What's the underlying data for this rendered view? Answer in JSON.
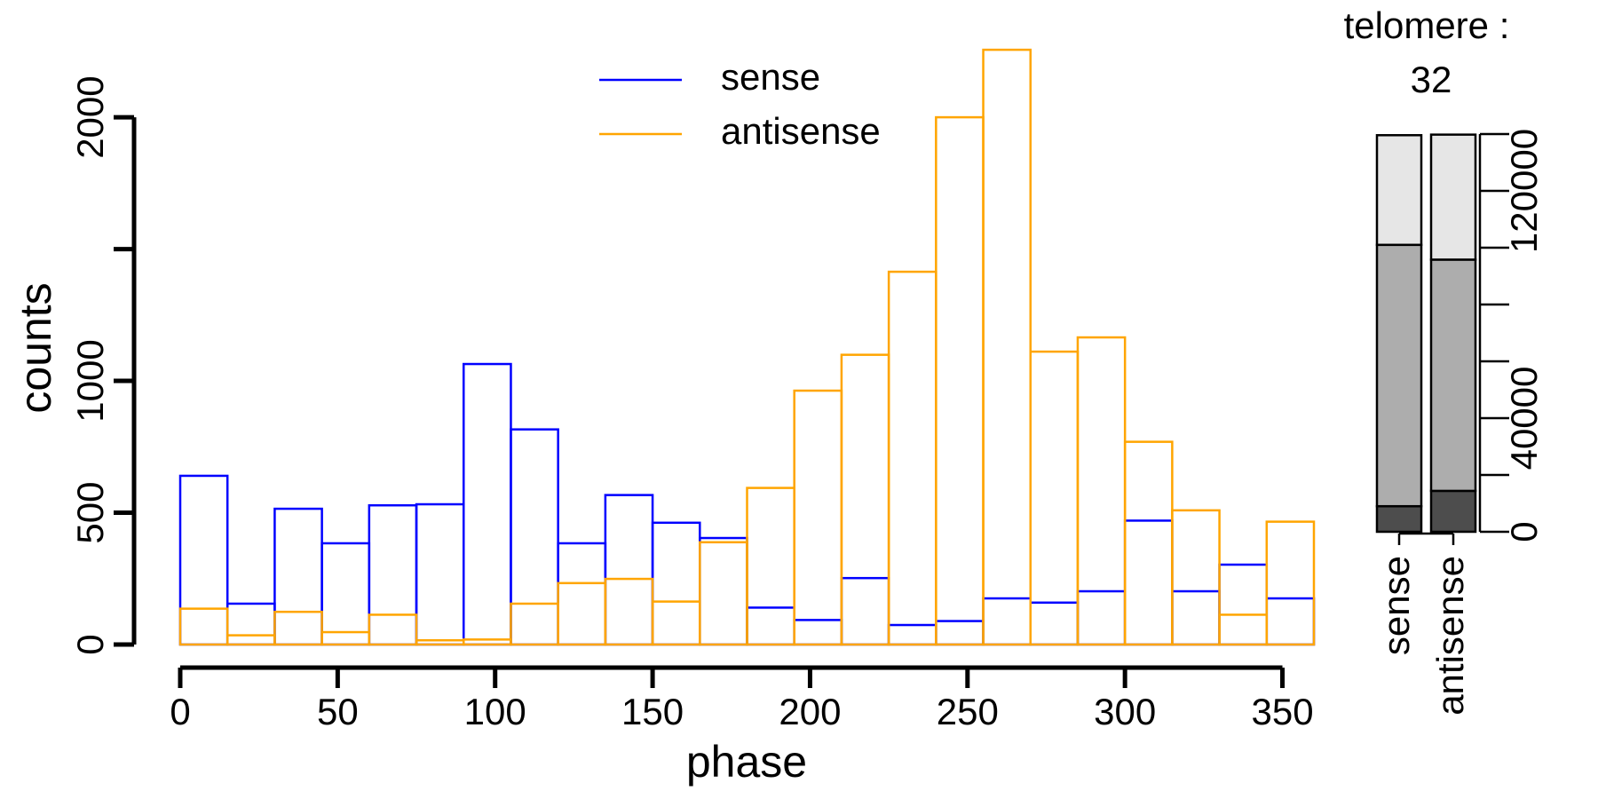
{
  "chart_data": [
    {
      "type": "histogram",
      "xlabel": "phase",
      "ylabel": "counts",
      "bins": [
        0,
        15,
        30,
        45,
        60,
        75,
        90,
        105,
        120,
        135,
        150,
        165,
        180,
        195,
        210,
        225,
        240,
        255,
        270,
        285,
        300,
        315,
        330,
        345,
        360
      ],
      "series": [
        {
          "name": "sense",
          "color": "#0000ff",
          "values": [
            640,
            155,
            515,
            384,
            528,
            532,
            1064,
            816,
            384,
            567,
            462,
            404,
            140,
            93,
            252,
            74,
            89,
            175,
            159,
            202,
            470,
            202,
            303,
            175
          ]
        },
        {
          "name": "antisense",
          "color": "#ffa500",
          "values": [
            136,
            35,
            124,
            47,
            113,
            16,
            19,
            155,
            233,
            249,
            163,
            388,
            594,
            963,
            1099,
            1414,
            2000,
            2256,
            1111,
            1165,
            769,
            509,
            113,
            466
          ]
        }
      ],
      "xlim": [
        0,
        360
      ],
      "ylim": [
        0,
        2300
      ],
      "xticks": [
        0,
        50,
        100,
        150,
        200,
        250,
        300,
        350
      ],
      "yticks": [
        0,
        500,
        1000,
        {
          "value": 1500,
          "label": null
        },
        2000
      ],
      "legend": "top"
    },
    {
      "type": "stacked_bar",
      "title": "telomere :",
      "subtitle": "32",
      "categories": [
        "sense",
        "antisense"
      ],
      "series": [
        {
          "color": "#4d4d4d",
          "values": [
            9000,
            14400
          ]
        },
        {
          "color": "#adadad",
          "values": [
            92000,
            81400
          ]
        },
        {
          "color": "#e6e6e6",
          "values": [
            38600,
            44000
          ]
        }
      ],
      "ylim": [
        0,
        140000
      ],
      "yticks": [
        0,
        {
          "value": 20000,
          "label": null
        },
        40000,
        {
          "value": 60000,
          "label": null
        },
        {
          "value": 80000,
          "label": null
        },
        {
          "value": 100000,
          "label": null
        },
        120000,
        {
          "value": 140000,
          "label": null
        }
      ]
    }
  ]
}
